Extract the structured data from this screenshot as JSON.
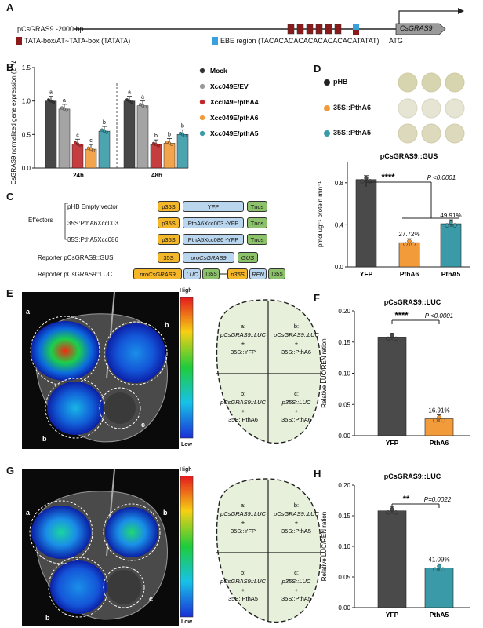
{
  "panels": {
    "A": "A",
    "B": "B",
    "C": "C",
    "D": "D",
    "E": "E",
    "F": "F",
    "G": "G",
    "H": "H"
  },
  "colors": {
    "tata": "#8b1a1a",
    "ebe": "#3aa0dc",
    "mock": "#333333",
    "ev": "#9a9a9a",
    "ptha4": "#c0282b",
    "ptha6": "#f29b3a",
    "ptha5": "#3a9aa8",
    "p35s": "#f5b72a",
    "yfp": "#b9d6ee",
    "tnos": "#8cc36a",
    "leaf": "#e6f0da"
  },
  "panelA": {
    "promoter_label": "pCsGRAS9 -2000 bp",
    "gene_label": "CsGRAS9",
    "atg_label": "ATG",
    "tata_legend": "TATA-box/AT~TATA-box (TATATA)",
    "ebe_legend": "EBE region (TACACACACACACACACACATATAT)"
  },
  "panelB": {
    "chart_data": {
      "type": "bar",
      "ylabel": "CsGRAS9 normalized gene expression (2^-ΔCt)",
      "ylim": [
        0,
        1.5
      ],
      "yticks": [
        "0.0",
        "0.5",
        "1.0",
        "1.5"
      ],
      "categories": [
        "24h",
        "48h"
      ],
      "series": [
        {
          "name": "Mock",
          "values": [
            1.0,
            1.0
          ],
          "letters": [
            "a",
            "a"
          ]
        },
        {
          "name": "Xcc049E/EV",
          "values": [
            0.88,
            0.93
          ],
          "letters": [
            "a",
            "a"
          ]
        },
        {
          "name": "Xcc049E/pthA4",
          "values": [
            0.36,
            0.35
          ],
          "letters": [
            "c",
            "b"
          ]
        },
        {
          "name": "Xcc049E/pthA6",
          "values": [
            0.28,
            0.37
          ],
          "letters": [
            "c",
            "b"
          ]
        },
        {
          "name": "Xcc049E/pthA5",
          "values": [
            0.55,
            0.5
          ],
          "letters": [
            "b",
            "b"
          ]
        }
      ]
    }
  },
  "panelC": {
    "effectors": "Effectors",
    "row1_label": "pHB Empty vector",
    "row2_label": "35S:PthA6Xcc003",
    "row3_label": "35S:PthA5Xcc086",
    "reporter1_label": "Reporter pCsGRAS9::GUS",
    "reporter2_label": "Reporter pCsGRAS9::LUC",
    "p35s": "p35S",
    "yfp": "YFP",
    "tnos": "Tnos",
    "ptha6_yfp": "PthA6Xcc003 -YFP",
    "ptha5_yfp": "PthA5Xcc086 -YFP",
    "s35": "35S",
    "pro": "proCsGRAS9",
    "gus": "GUS",
    "luc": "LUC",
    "t35s": "T35S",
    "ren": "REN"
  },
  "panelD": {
    "legend": [
      "pHB",
      "35S::PthA6",
      "35S::PthA5"
    ],
    "chart_data": {
      "type": "bar",
      "title": "pCsGRAS9::GUS",
      "ylabel": "pmol ug⁻¹ protein min⁻¹",
      "ylim": [
        0,
        1.0
      ],
      "yticks": [
        "0.0",
        "0.4",
        "0.8"
      ],
      "categories": [
        "YFP",
        "PthA6",
        "PthA5"
      ],
      "values": [
        0.83,
        0.23,
        0.41
      ],
      "percent_labels": [
        "",
        "27.72%",
        "49.91%"
      ],
      "significance": "****",
      "pvalue": "P <0.0001"
    }
  },
  "panelE": {
    "scale_high": "High",
    "scale_low": "Low",
    "spot_labels": [
      "a",
      "b",
      "b",
      "c"
    ],
    "quadrants": [
      {
        "letter": "a:",
        "line1": "pCsGRAS9::LUC",
        "plus": "+",
        "line2": "35S::YFP"
      },
      {
        "letter": "b:",
        "line1": "pCsGRAS9::LUC",
        "plus": "+",
        "line2": "35S::PthA6"
      },
      {
        "letter": "b:",
        "line1": "pCsGRAS9::LUC",
        "plus": "+",
        "line2": "35S::PthA6"
      },
      {
        "letter": "c:",
        "line1": "p35S::LUC",
        "plus": "+",
        "line2": "35S::PthA6"
      }
    ]
  },
  "panelF": {
    "chart_data": {
      "type": "bar",
      "title": "pCsGRAS9::LUC",
      "ylabel": "Relative LUC/REN ration",
      "ylim": [
        0,
        0.2
      ],
      "yticks": [
        "0.00",
        "0.05",
        "0.10",
        "0.15",
        "0.20"
      ],
      "categories": [
        "YFP",
        "PthA6"
      ],
      "values": [
        0.158,
        0.027
      ],
      "percent_labels": [
        "",
        "16.91%"
      ],
      "significance": "****",
      "pvalue": "P <0.0001"
    }
  },
  "panelG": {
    "scale_high": "High",
    "scale_low": "Low",
    "spot_labels": [
      "a",
      "b",
      "b",
      "c"
    ],
    "quadrants": [
      {
        "letter": "a:",
        "line1": "pCsGRAS9::LUC",
        "plus": "+",
        "line2": "35S::YFP"
      },
      {
        "letter": "b:",
        "line1": "pCsGRAS9::LUC",
        "plus": "+",
        "line2": "35S::PthA5"
      },
      {
        "letter": "b:",
        "line1": "pCsGRAS9::LUC",
        "plus": "+",
        "line2": "35S::PthA5"
      },
      {
        "letter": "c:",
        "line1": "p35S::LUC",
        "plus": "+",
        "line2": "35S::PthA5"
      }
    ]
  },
  "panelH": {
    "chart_data": {
      "type": "bar",
      "title": "pCsGRAS9::LUC",
      "ylabel": "Relative LUC/REN ration",
      "ylim": [
        0,
        0.2
      ],
      "yticks": [
        "0.00",
        "0.05",
        "0.10",
        "0.15",
        "0.20"
      ],
      "categories": [
        "YFP",
        "PthA5"
      ],
      "values": [
        0.158,
        0.065
      ],
      "percent_labels": [
        "",
        "41.09%"
      ],
      "significance": "**",
      "pvalue": "P=0.0022"
    }
  }
}
